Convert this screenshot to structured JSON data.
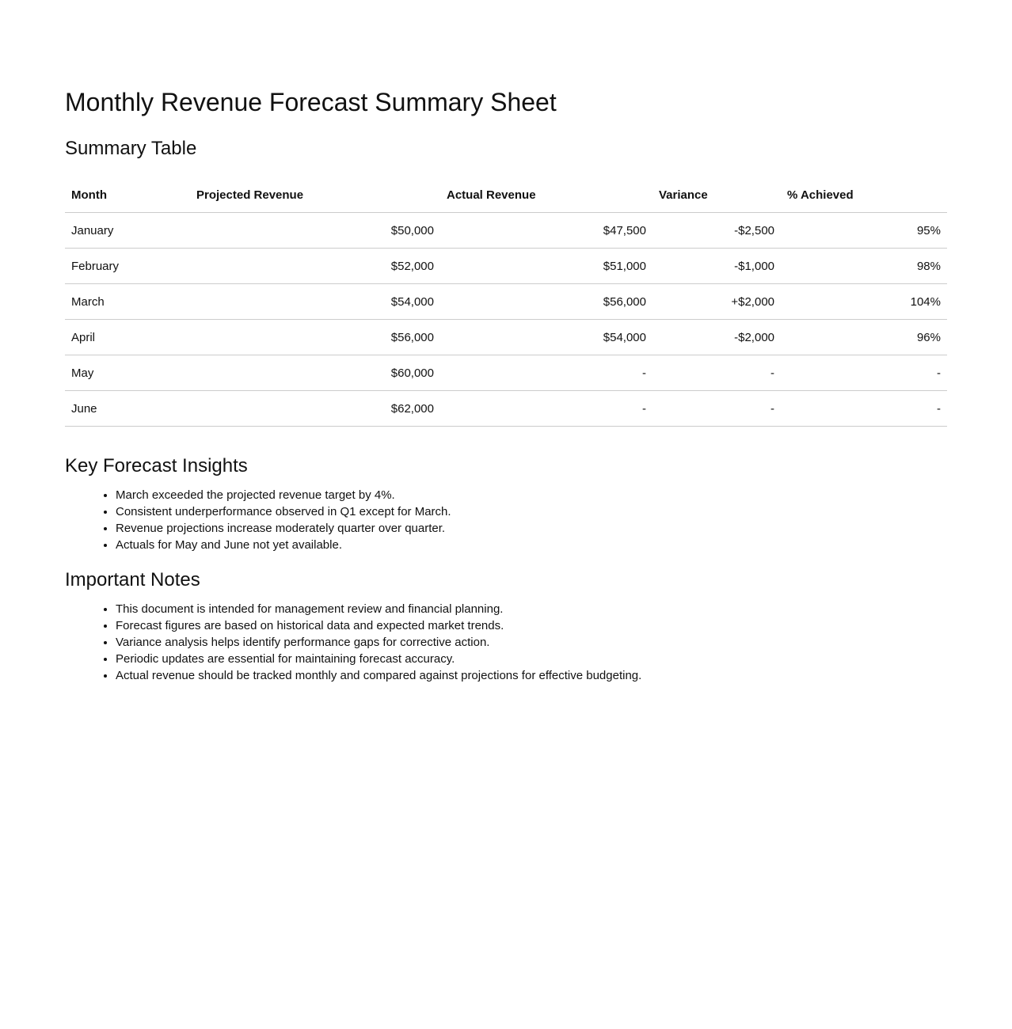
{
  "title": "Monthly Revenue Forecast Summary Sheet",
  "summary": {
    "heading": "Summary Table",
    "columns": [
      "Month",
      "Projected Revenue",
      "Actual Revenue",
      "Variance",
      "% Achieved"
    ],
    "rows": [
      [
        "January",
        "$50,000",
        "$47,500",
        "-$2,500",
        "95%"
      ],
      [
        "February",
        "$52,000",
        "$51,000",
        "-$1,000",
        "98%"
      ],
      [
        "March",
        "$54,000",
        "$56,000",
        "+$2,000",
        "104%"
      ],
      [
        "April",
        "$56,000",
        "$54,000",
        "-$2,000",
        "96%"
      ],
      [
        "May",
        "$60,000",
        "-",
        "-",
        "-"
      ],
      [
        "June",
        "$62,000",
        "-",
        "-",
        "-"
      ]
    ]
  },
  "insights": {
    "heading": "Key Forecast Insights",
    "items": [
      "March exceeded the projected revenue target by 4%.",
      "Consistent underperformance observed in Q1 except for March.",
      "Revenue projections increase moderately quarter over quarter.",
      "Actuals for May and June not yet available."
    ]
  },
  "notes": {
    "heading": "Important Notes",
    "items": [
      "This document is intended for management review and financial planning.",
      "Forecast figures are based on historical data and expected market trends.",
      "Variance analysis helps identify performance gaps for corrective action.",
      "Periodic updates are essential for maintaining forecast accuracy.",
      "Actual revenue should be tracked monthly and compared against projections for effective budgeting."
    ]
  }
}
